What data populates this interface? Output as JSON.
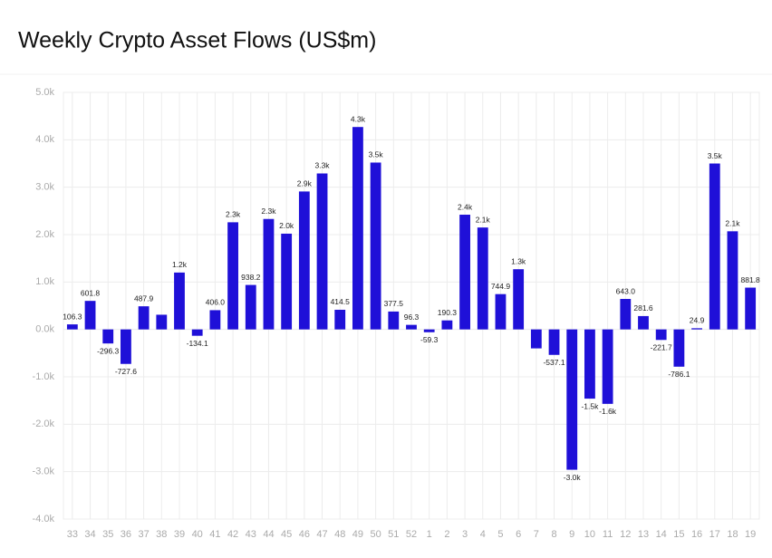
{
  "chart_data": {
    "type": "bar",
    "title": "Weekly Crypto Asset Flows (US$m)",
    "categories": [
      "33",
      "34",
      "35",
      "36",
      "37",
      "38",
      "39",
      "40",
      "41",
      "42",
      "43",
      "44",
      "45",
      "46",
      "47",
      "48",
      "49",
      "50",
      "51",
      "52",
      "1",
      "2",
      "3",
      "4",
      "5",
      "6",
      "7",
      "8",
      "9",
      "10",
      "11",
      "12",
      "13",
      "14",
      "15",
      "16",
      "17",
      "18",
      "19"
    ],
    "values": [
      106.3,
      601.8,
      -296.3,
      -727.6,
      487.9,
      310,
      1200,
      -134.1,
      406.0,
      2260,
      938.2,
      2330,
      2020,
      2910,
      3290,
      414.5,
      4270,
      3520,
      377.5,
      96.3,
      -59.3,
      190.3,
      2420,
      2150,
      744.9,
      1270,
      -400,
      -537.1,
      -2960,
      -1460,
      -1570,
      643.0,
      281.6,
      -221.7,
      -786.1,
      24.9,
      3500,
      2070,
      881.8
    ],
    "value_labels": [
      "106.3",
      "601.8",
      "-296.3",
      "-727.6",
      "487.9",
      null,
      "1.2k",
      "-134.1",
      "406.0",
      "2.3k",
      "938.2",
      "2.3k",
      "2.0k",
      "2.9k",
      "3.3k",
      "414.5",
      "4.3k",
      "3.5k",
      "377.5",
      "96.3",
      "-59.3",
      "190.3",
      "2.4k",
      "2.1k",
      "744.9",
      "1.3k",
      null,
      "-537.1",
      "-3.0k",
      "-1.5k",
      "-1.6k",
      "643.0",
      "281.6",
      "-221.7",
      "-786.1",
      "24.9",
      "3.5k",
      "2.1k",
      "881.8"
    ],
    "color": "#1f10d8",
    "ylim": [
      -4000,
      5000
    ],
    "yticks": [
      {
        "value": -4000,
        "label": "-4.0k"
      },
      {
        "value": -3000,
        "label": "-3.0k"
      },
      {
        "value": -2000,
        "label": "-2.0k"
      },
      {
        "value": -1000,
        "label": "-1.0k"
      },
      {
        "value": 0,
        "label": "0.0k"
      },
      {
        "value": 1000,
        "label": "1.0k"
      },
      {
        "value": 2000,
        "label": "2.0k"
      },
      {
        "value": 3000,
        "label": "3.0k"
      },
      {
        "value": 4000,
        "label": "4.0k"
      },
      {
        "value": 5000,
        "label": "5.0k"
      }
    ],
    "grid": true
  }
}
